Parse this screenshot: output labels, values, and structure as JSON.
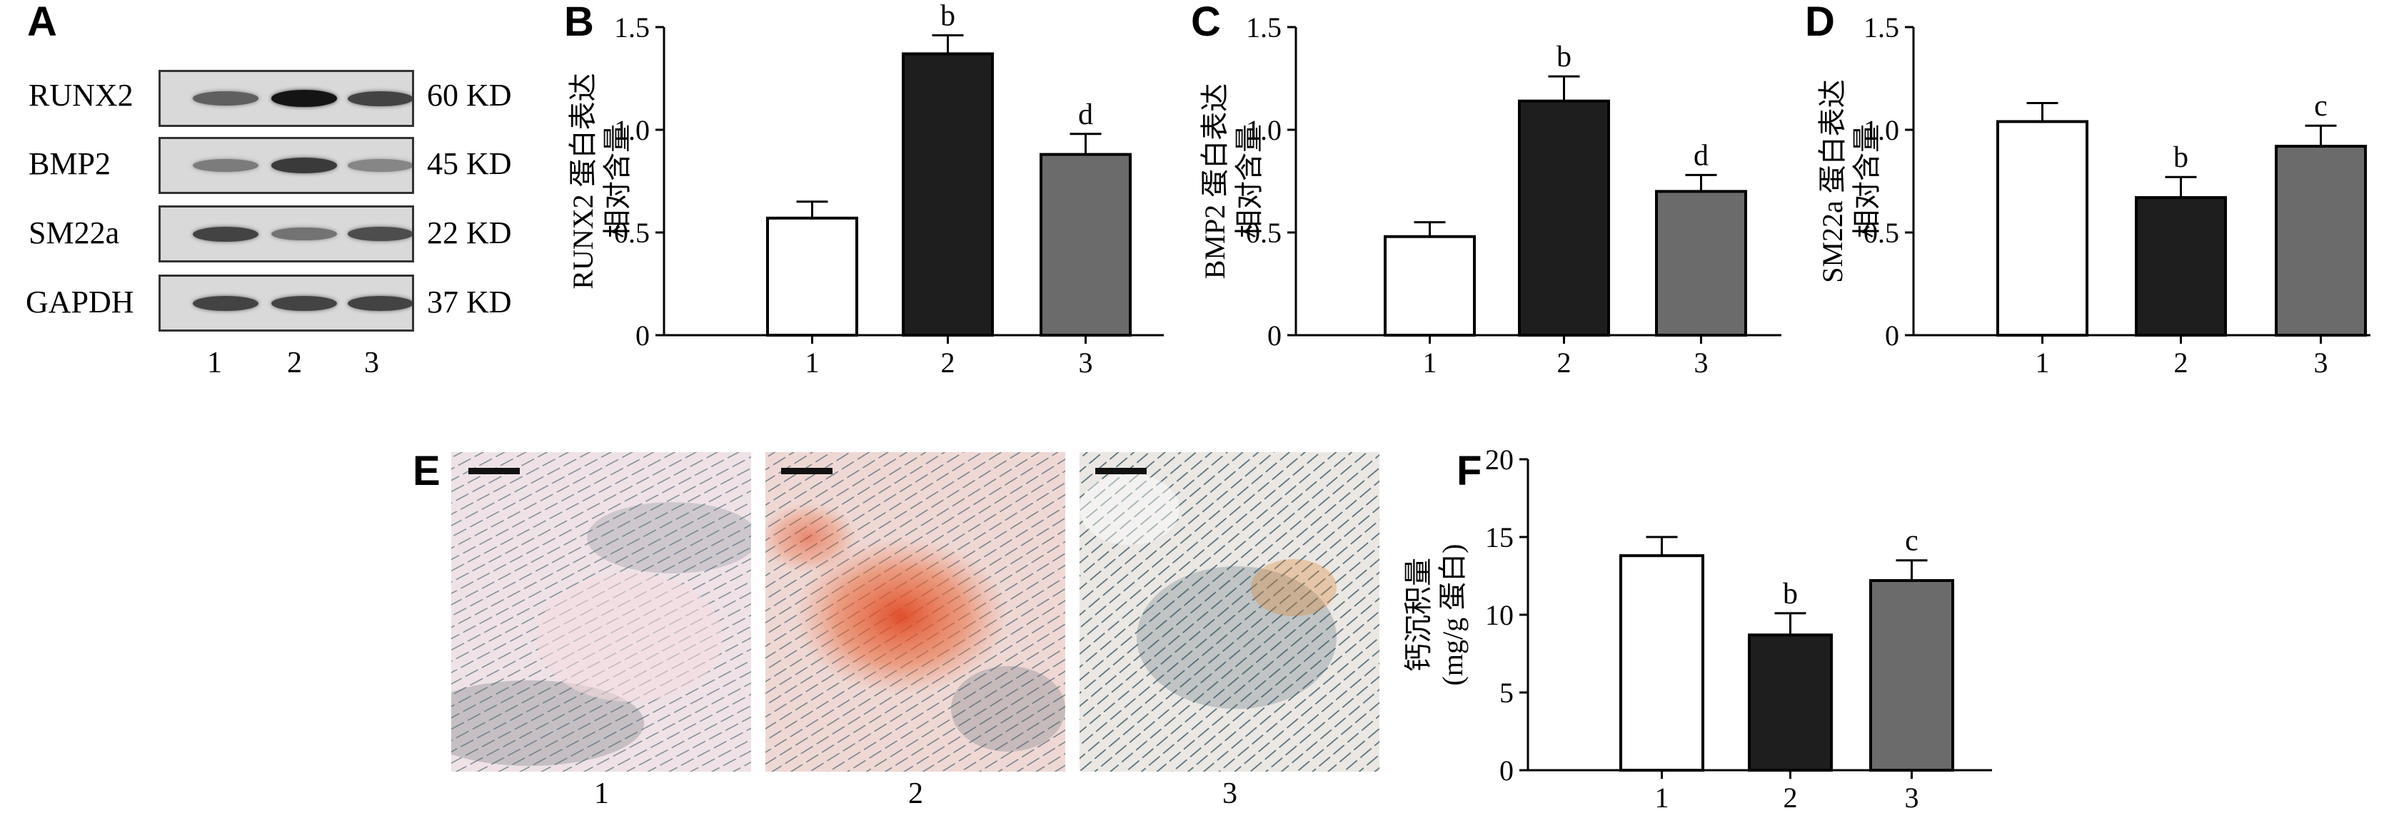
{
  "panels": {
    "a": "A",
    "b": "B",
    "c": "C",
    "d": "D",
    "e": "E",
    "f": "F"
  },
  "blot": {
    "rows": [
      {
        "protein": "RUNX2",
        "size": "60 KD",
        "intensity": [
          0.55,
          0.95,
          0.7
        ]
      },
      {
        "protein": "BMP2",
        "size": "45 KD",
        "intensity": [
          0.4,
          0.75,
          0.35
        ]
      },
      {
        "protein": "SM22a",
        "size": "22 KD",
        "intensity": [
          0.7,
          0.45,
          0.65
        ]
      },
      {
        "protein": "GAPDH",
        "size": "37 KD",
        "intensity": [
          0.7,
          0.7,
          0.7
        ]
      }
    ],
    "lanes": [
      "1",
      "2",
      "3"
    ]
  },
  "micrographs": {
    "captions": [
      "1",
      "2",
      "3"
    ]
  },
  "chart_data": [
    {
      "panel": "B",
      "type": "bar",
      "categories": [
        "1",
        "2",
        "3"
      ],
      "values": [
        0.57,
        1.37,
        0.88
      ],
      "errors": [
        0.08,
        0.09,
        0.1
      ],
      "annotations": [
        "",
        "b",
        "d"
      ],
      "colors": [
        "#ffffff",
        "#1e1e1e",
        "#6b6b6b"
      ],
      "ylabel_lines": [
        "RUNX2 蛋白表达",
        "相对含量"
      ],
      "ylim": [
        0,
        1.5
      ],
      "yticks": [
        0,
        0.5,
        1.0,
        1.5
      ],
      "ytick_labels": [
        "0",
        "0.5",
        "1.0",
        "1.5"
      ]
    },
    {
      "panel": "C",
      "type": "bar",
      "categories": [
        "1",
        "2",
        "3"
      ],
      "values": [
        0.48,
        1.14,
        0.7
      ],
      "errors": [
        0.07,
        0.12,
        0.08
      ],
      "annotations": [
        "",
        "b",
        "d"
      ],
      "colors": [
        "#ffffff",
        "#1e1e1e",
        "#6b6b6b"
      ],
      "ylabel_lines": [
        "BMP2 蛋白表达",
        "相对含量"
      ],
      "ylim": [
        0,
        1.5
      ],
      "yticks": [
        0,
        0.5,
        1.0,
        1.5
      ],
      "ytick_labels": [
        "0",
        "0.5",
        "1.0",
        "1.5"
      ]
    },
    {
      "panel": "D",
      "type": "bar",
      "categories": [
        "1",
        "2",
        "3"
      ],
      "values": [
        1.04,
        0.67,
        0.92
      ],
      "errors": [
        0.09,
        0.1,
        0.1
      ],
      "annotations": [
        "",
        "b",
        "c"
      ],
      "colors": [
        "#ffffff",
        "#1e1e1e",
        "#6b6b6b"
      ],
      "ylabel_lines": [
        "SM22a 蛋白表达",
        "相对含量"
      ],
      "ylim": [
        0,
        1.5
      ],
      "yticks": [
        0,
        0.5,
        1.0,
        1.5
      ],
      "ytick_labels": [
        "0",
        "0.5",
        "1.0",
        "1.5"
      ]
    },
    {
      "panel": "F",
      "type": "bar",
      "categories": [
        "1",
        "2",
        "3"
      ],
      "values": [
        13.8,
        8.7,
        12.2
      ],
      "errors": [
        1.2,
        1.4,
        1.3
      ],
      "annotations": [
        "",
        "b",
        "c"
      ],
      "colors": [
        "#ffffff",
        "#1e1e1e",
        "#6b6b6b"
      ],
      "ylabel_lines": [
        "钙沉积量",
        "(mg/g 蛋白)"
      ],
      "ylim": [
        0,
        20
      ],
      "yticks": [
        0,
        5,
        10,
        15,
        20
      ],
      "ytick_labels": [
        "0",
        "5",
        "10",
        "15",
        "20"
      ]
    }
  ]
}
